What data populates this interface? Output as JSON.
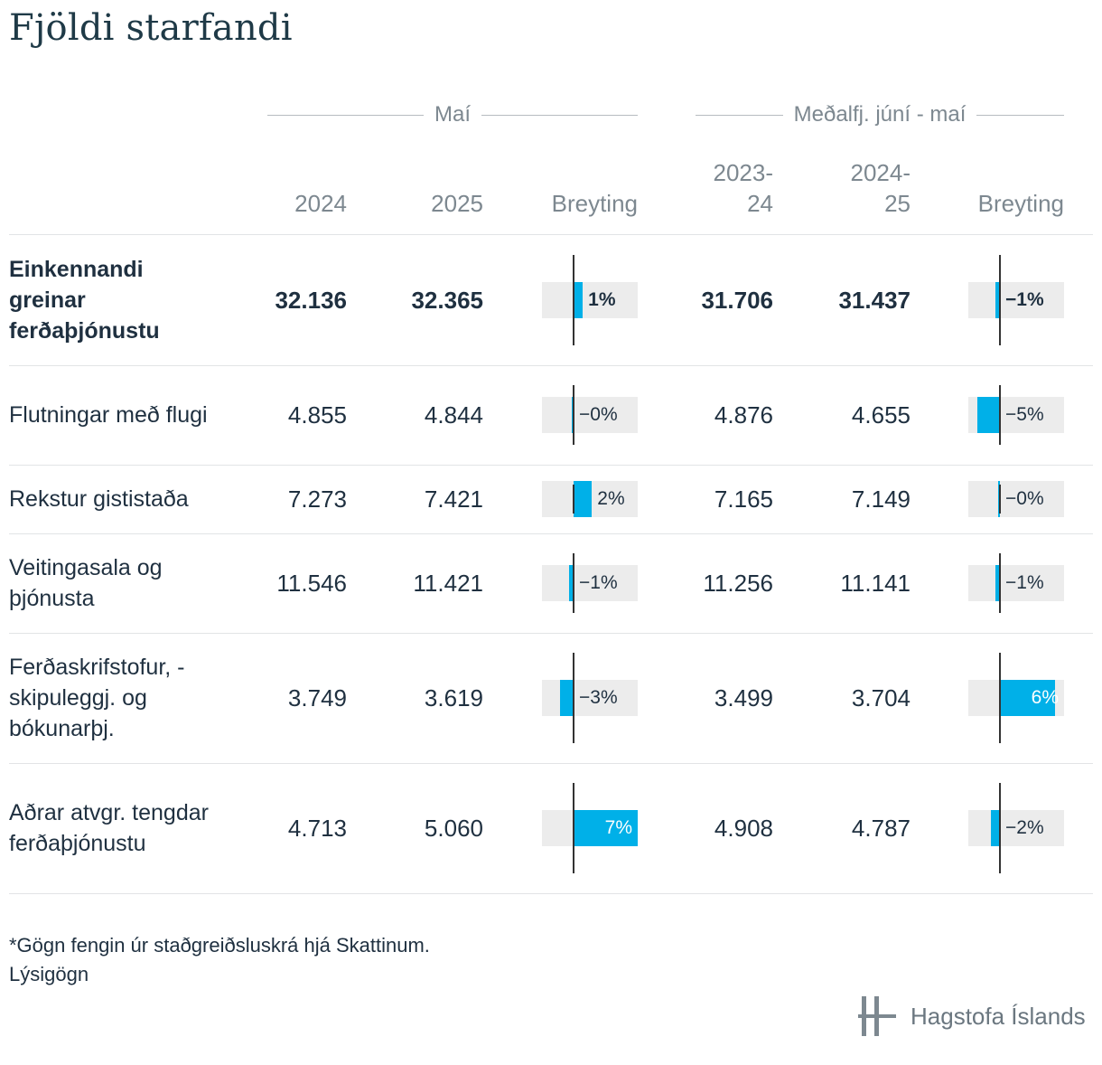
{
  "title": "Fjöldi starfandi",
  "groups": [
    {
      "label": "Maí"
    },
    {
      "label": "Meðalfj. júní - maí"
    }
  ],
  "columns": [
    "2024",
    "2025",
    "Breyting",
    "2023-\n24",
    "2024-\n25",
    "Breyting"
  ],
  "chart_data": {
    "type": "table",
    "title": "Fjöldi starfandi",
    "axis_max_abs_percent": 7,
    "rows": [
      {
        "label": "Einkennandi greinar ferðaþjónustu",
        "bold": true,
        "may_2024": "32.136",
        "may_2025": "32.365",
        "may_change": 1,
        "may_change_label": "1%",
        "avg_2023_24": "31.706",
        "avg_2024_25": "31.437",
        "avg_change": -1,
        "avg_change_label": "−1%"
      },
      {
        "label": "Flutningar með flugi",
        "bold": false,
        "may_2024": "4.855",
        "may_2025": "4.844",
        "may_change": -0.2,
        "may_change_label": "−0%",
        "avg_2023_24": "4.876",
        "avg_2024_25": "4.655",
        "avg_change": -5,
        "avg_change_label": "−5%"
      },
      {
        "label": "Rekstur gististaða",
        "bold": false,
        "may_2024": "7.273",
        "may_2025": "7.421",
        "may_change": 2,
        "may_change_label": "2%",
        "avg_2023_24": "7.165",
        "avg_2024_25": "7.149",
        "avg_change": -0.2,
        "avg_change_label": "−0%"
      },
      {
        "label": "Veitingasala og þjónusta",
        "bold": false,
        "may_2024": "11.546",
        "may_2025": "11.421",
        "may_change": -1,
        "may_change_label": "−1%",
        "avg_2023_24": "11.256",
        "avg_2024_25": "11.141",
        "avg_change": -1,
        "avg_change_label": "−1%"
      },
      {
        "label": "Ferðaskrifstofur, -skipuleggj. og bókunarþj.",
        "bold": false,
        "may_2024": "3.749",
        "may_2025": "3.619",
        "may_change": -3,
        "may_change_label": "−3%",
        "avg_2023_24": "3.499",
        "avg_2024_25": "3.704",
        "avg_change": 6,
        "avg_change_label": "6%"
      },
      {
        "label": "Aðrar atvgr. tengdar ferðaþjónustu",
        "bold": false,
        "may_2024": "4.713",
        "may_2025": "5.060",
        "may_change": 7,
        "may_change_label": "7%",
        "avg_2023_24": "4.908",
        "avg_2024_25": "4.787",
        "avg_change": -2,
        "avg_change_label": "−2%"
      }
    ]
  },
  "footnote": "*Gögn fengin úr staðgreiðsluskrá hjá Skattinum.",
  "footnote_link": "Lýsigögn",
  "logo_text": "Hagstofa Íslands",
  "colors": {
    "bar": "#00b0e8",
    "bar_bg": "#ececec",
    "axis": "#333333"
  }
}
